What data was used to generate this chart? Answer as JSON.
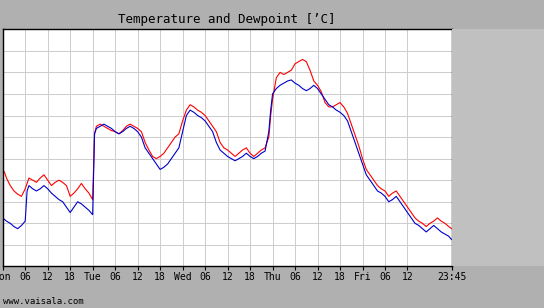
{
  "title": "Temperature and Dewpoint [’C]",
  "watermark": "www.vaisala.com",
  "ylim": [
    -12,
    10
  ],
  "yticks": [
    -12,
    -10,
    -8,
    -6,
    -4,
    -2,
    0,
    2,
    4,
    6,
    8,
    10
  ],
  "fig_bg_color": "#b0b0b0",
  "plot_bg_color": "#ffffff",
  "right_panel_bg": "#c0c0c0",
  "grid_color": "#cccccc",
  "temp_color": "#ff0000",
  "dewp_color": "#0000cc",
  "line_width": 0.8,
  "xtick_labels": [
    "Mon",
    "06",
    "12",
    "18",
    "Tue",
    "06",
    "12",
    "18",
    "Wed",
    "06",
    "12",
    "18",
    "Thu",
    "06",
    "12",
    "18",
    "Fri",
    "06",
    "12",
    "23:45"
  ],
  "xtick_positions": [
    0,
    6,
    12,
    18,
    24,
    30,
    36,
    42,
    48,
    54,
    60,
    66,
    72,
    78,
    84,
    90,
    96,
    102,
    108,
    119.75
  ],
  "total_hours": 119.75,
  "temp_data": [
    [
      0,
      -3.0
    ],
    [
      0.5,
      -3.3
    ],
    [
      1,
      -3.8
    ],
    [
      2,
      -4.5
    ],
    [
      3,
      -5.0
    ],
    [
      4,
      -5.3
    ],
    [
      5,
      -5.5
    ],
    [
      6,
      -4.8
    ],
    [
      7,
      -3.8
    ],
    [
      8,
      -4.0
    ],
    [
      9,
      -4.2
    ],
    [
      10,
      -3.8
    ],
    [
      11,
      -3.5
    ],
    [
      12,
      -4.0
    ],
    [
      13,
      -4.5
    ],
    [
      14,
      -4.2
    ],
    [
      15,
      -4.0
    ],
    [
      16,
      -4.2
    ],
    [
      17,
      -4.5
    ],
    [
      18,
      -5.5
    ],
    [
      19,
      -5.2
    ],
    [
      20,
      -4.8
    ],
    [
      21,
      -4.3
    ],
    [
      22,
      -4.8
    ],
    [
      23,
      -5.2
    ],
    [
      23.5,
      -5.5
    ],
    [
      24,
      -5.8
    ],
    [
      24.5,
      0.3
    ],
    [
      25,
      1.0
    ],
    [
      26,
      1.2
    ],
    [
      27,
      1.0
    ],
    [
      28,
      0.8
    ],
    [
      29,
      0.6
    ],
    [
      30,
      0.5
    ],
    [
      31,
      0.3
    ],
    [
      32,
      0.6
    ],
    [
      33,
      1.0
    ],
    [
      34,
      1.2
    ],
    [
      35,
      1.0
    ],
    [
      36,
      0.8
    ],
    [
      37,
      0.5
    ],
    [
      38,
      -0.5
    ],
    [
      39,
      -1.2
    ],
    [
      40,
      -1.8
    ],
    [
      41,
      -2.0
    ],
    [
      42,
      -1.8
    ],
    [
      43,
      -1.5
    ],
    [
      44,
      -1.0
    ],
    [
      45,
      -0.5
    ],
    [
      46,
      0.0
    ],
    [
      47,
      0.3
    ],
    [
      48,
      1.5
    ],
    [
      49,
      2.5
    ],
    [
      50,
      3.0
    ],
    [
      51,
      2.8
    ],
    [
      52,
      2.5
    ],
    [
      53,
      2.3
    ],
    [
      54,
      2.0
    ],
    [
      55,
      1.5
    ],
    [
      56,
      1.0
    ],
    [
      57,
      0.5
    ],
    [
      58,
      -0.5
    ],
    [
      59,
      -1.0
    ],
    [
      60,
      -1.2
    ],
    [
      61,
      -1.5
    ],
    [
      62,
      -1.8
    ],
    [
      63,
      -1.5
    ],
    [
      64,
      -1.2
    ],
    [
      65,
      -1.0
    ],
    [
      66,
      -1.5
    ],
    [
      67,
      -1.8
    ],
    [
      68,
      -1.5
    ],
    [
      69,
      -1.2
    ],
    [
      70,
      -1.0
    ],
    [
      71,
      0.0
    ],
    [
      71.5,
      2.0
    ],
    [
      72,
      3.5
    ],
    [
      73,
      5.5
    ],
    [
      74,
      6.0
    ],
    [
      75,
      5.8
    ],
    [
      76,
      6.0
    ],
    [
      77,
      6.2
    ],
    [
      78,
      6.8
    ],
    [
      79,
      7.0
    ],
    [
      80,
      7.2
    ],
    [
      81,
      7.0
    ],
    [
      82,
      6.2
    ],
    [
      83,
      5.2
    ],
    [
      84,
      4.8
    ],
    [
      85,
      4.2
    ],
    [
      86,
      3.2
    ],
    [
      87,
      2.8
    ],
    [
      88,
      2.8
    ],
    [
      89,
      3.0
    ],
    [
      90,
      3.2
    ],
    [
      91,
      2.8
    ],
    [
      92,
      2.2
    ],
    [
      93,
      1.2
    ],
    [
      94,
      0.2
    ],
    [
      95,
      -0.8
    ],
    [
      96,
      -2.0
    ],
    [
      97,
      -3.0
    ],
    [
      98,
      -3.5
    ],
    [
      99,
      -4.0
    ],
    [
      100,
      -4.5
    ],
    [
      101,
      -4.8
    ],
    [
      102,
      -5.0
    ],
    [
      103,
      -5.5
    ],
    [
      104,
      -5.2
    ],
    [
      105,
      -5.0
    ],
    [
      106,
      -5.5
    ],
    [
      107,
      -6.0
    ],
    [
      108,
      -6.5
    ],
    [
      109,
      -7.0
    ],
    [
      110,
      -7.5
    ],
    [
      111,
      -7.8
    ],
    [
      112,
      -8.0
    ],
    [
      113,
      -8.3
    ],
    [
      114,
      -8.0
    ],
    [
      115,
      -7.8
    ],
    [
      116,
      -7.5
    ],
    [
      117,
      -7.8
    ],
    [
      118,
      -8.0
    ],
    [
      119,
      -8.3
    ],
    [
      119.75,
      -8.5
    ]
  ],
  "dewp_data": [
    [
      0,
      -7.5
    ],
    [
      1,
      -7.8
    ],
    [
      2,
      -8.0
    ],
    [
      3,
      -8.3
    ],
    [
      4,
      -8.5
    ],
    [
      5,
      -8.2
    ],
    [
      6,
      -7.8
    ],
    [
      6.5,
      -5.0
    ],
    [
      7,
      -4.5
    ],
    [
      8,
      -4.8
    ],
    [
      9,
      -5.0
    ],
    [
      10,
      -4.8
    ],
    [
      11,
      -4.5
    ],
    [
      12,
      -4.8
    ],
    [
      13,
      -5.2
    ],
    [
      14,
      -5.5
    ],
    [
      15,
      -5.8
    ],
    [
      16,
      -6.0
    ],
    [
      17,
      -6.5
    ],
    [
      18,
      -7.0
    ],
    [
      19,
      -6.5
    ],
    [
      20,
      -6.0
    ],
    [
      21,
      -6.2
    ],
    [
      22,
      -6.5
    ],
    [
      23,
      -6.8
    ],
    [
      23.5,
      -7.0
    ],
    [
      24,
      -7.2
    ],
    [
      24.5,
      0.3
    ],
    [
      25,
      0.8
    ],
    [
      26,
      1.0
    ],
    [
      27,
      1.2
    ],
    [
      28,
      1.0
    ],
    [
      29,
      0.8
    ],
    [
      30,
      0.5
    ],
    [
      31,
      0.3
    ],
    [
      32,
      0.5
    ],
    [
      33,
      0.8
    ],
    [
      34,
      1.0
    ],
    [
      35,
      0.8
    ],
    [
      36,
      0.5
    ],
    [
      37,
      0.0
    ],
    [
      38,
      -1.0
    ],
    [
      39,
      -1.5
    ],
    [
      40,
      -2.0
    ],
    [
      41,
      -2.5
    ],
    [
      42,
      -3.0
    ],
    [
      43,
      -2.8
    ],
    [
      44,
      -2.5
    ],
    [
      45,
      -2.0
    ],
    [
      46,
      -1.5
    ],
    [
      47,
      -1.0
    ],
    [
      48,
      0.5
    ],
    [
      49,
      2.0
    ],
    [
      50,
      2.5
    ],
    [
      51,
      2.3
    ],
    [
      52,
      2.0
    ],
    [
      53,
      1.8
    ],
    [
      54,
      1.5
    ],
    [
      55,
      1.0
    ],
    [
      56,
      0.5
    ],
    [
      57,
      -0.5
    ],
    [
      58,
      -1.2
    ],
    [
      59,
      -1.5
    ],
    [
      60,
      -1.8
    ],
    [
      61,
      -2.0
    ],
    [
      62,
      -2.2
    ],
    [
      63,
      -2.0
    ],
    [
      64,
      -1.8
    ],
    [
      65,
      -1.5
    ],
    [
      66,
      -1.8
    ],
    [
      67,
      -2.0
    ],
    [
      68,
      -1.8
    ],
    [
      69,
      -1.5
    ],
    [
      70,
      -1.3
    ],
    [
      71,
      0.5
    ],
    [
      71.5,
      2.5
    ],
    [
      72,
      4.0
    ],
    [
      73,
      4.5
    ],
    [
      74,
      4.8
    ],
    [
      75,
      5.0
    ],
    [
      76,
      5.2
    ],
    [
      77,
      5.3
    ],
    [
      78,
      5.0
    ],
    [
      79,
      4.8
    ],
    [
      80,
      4.5
    ],
    [
      81,
      4.3
    ],
    [
      82,
      4.5
    ],
    [
      83,
      4.8
    ],
    [
      84,
      4.5
    ],
    [
      85,
      4.0
    ],
    [
      86,
      3.5
    ],
    [
      87,
      3.0
    ],
    [
      88,
      2.8
    ],
    [
      89,
      2.5
    ],
    [
      90,
      2.3
    ],
    [
      91,
      2.0
    ],
    [
      92,
      1.5
    ],
    [
      93,
      0.5
    ],
    [
      94,
      -0.5
    ],
    [
      95,
      -1.5
    ],
    [
      96,
      -2.5
    ],
    [
      97,
      -3.5
    ],
    [
      98,
      -4.0
    ],
    [
      99,
      -4.5
    ],
    [
      100,
      -5.0
    ],
    [
      101,
      -5.2
    ],
    [
      102,
      -5.5
    ],
    [
      103,
      -6.0
    ],
    [
      104,
      -5.8
    ],
    [
      105,
      -5.5
    ],
    [
      106,
      -6.0
    ],
    [
      107,
      -6.5
    ],
    [
      108,
      -7.0
    ],
    [
      109,
      -7.5
    ],
    [
      110,
      -8.0
    ],
    [
      111,
      -8.2
    ],
    [
      112,
      -8.5
    ],
    [
      113,
      -8.8
    ],
    [
      114,
      -8.5
    ],
    [
      115,
      -8.2
    ],
    [
      116,
      -8.5
    ],
    [
      117,
      -8.8
    ],
    [
      118,
      -9.0
    ],
    [
      119,
      -9.2
    ],
    [
      119.75,
      -9.5
    ]
  ]
}
